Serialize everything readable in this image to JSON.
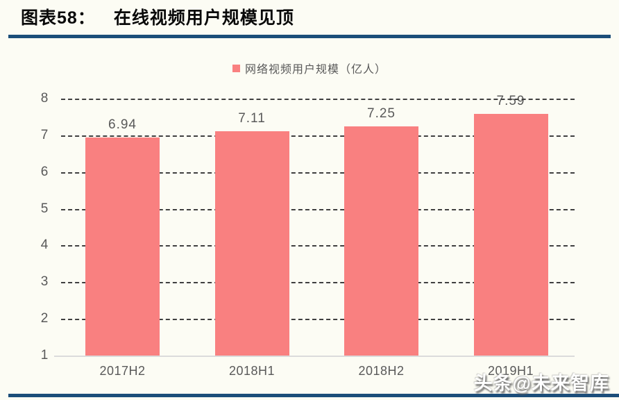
{
  "header": {
    "prefix": "图表58：",
    "title": "在线视频用户规模见顶"
  },
  "legend": {
    "label": "网络视频用户规模（亿人）"
  },
  "watermark": {
    "text": "头条@未来智库"
  },
  "colors": {
    "bar": "#f98080",
    "rule_navy": "#1c4e79",
    "gridline": "#3f3f3f",
    "baseline": "#dbdbdb",
    "text_gray": "#595959",
    "background": "#fcfcf4"
  },
  "chart_data": {
    "type": "bar",
    "title": "在线视频用户规模见顶",
    "legend_entries": [
      "网络视频用户规模（亿人）"
    ],
    "legend_position": "top-center",
    "categories": [
      "2017H2",
      "2018H1",
      "2018H2",
      "2019H1"
    ],
    "values": [
      6.94,
      7.11,
      7.25,
      7.59
    ],
    "value_labels": [
      "6.94",
      "7.11",
      "7.25",
      "7.59"
    ],
    "xlabel": "",
    "ylabel": "",
    "ylim": [
      1,
      8
    ],
    "yticks": [
      1,
      2,
      3,
      4,
      5,
      6,
      7,
      8
    ],
    "grid": "horizontal-dashed"
  }
}
